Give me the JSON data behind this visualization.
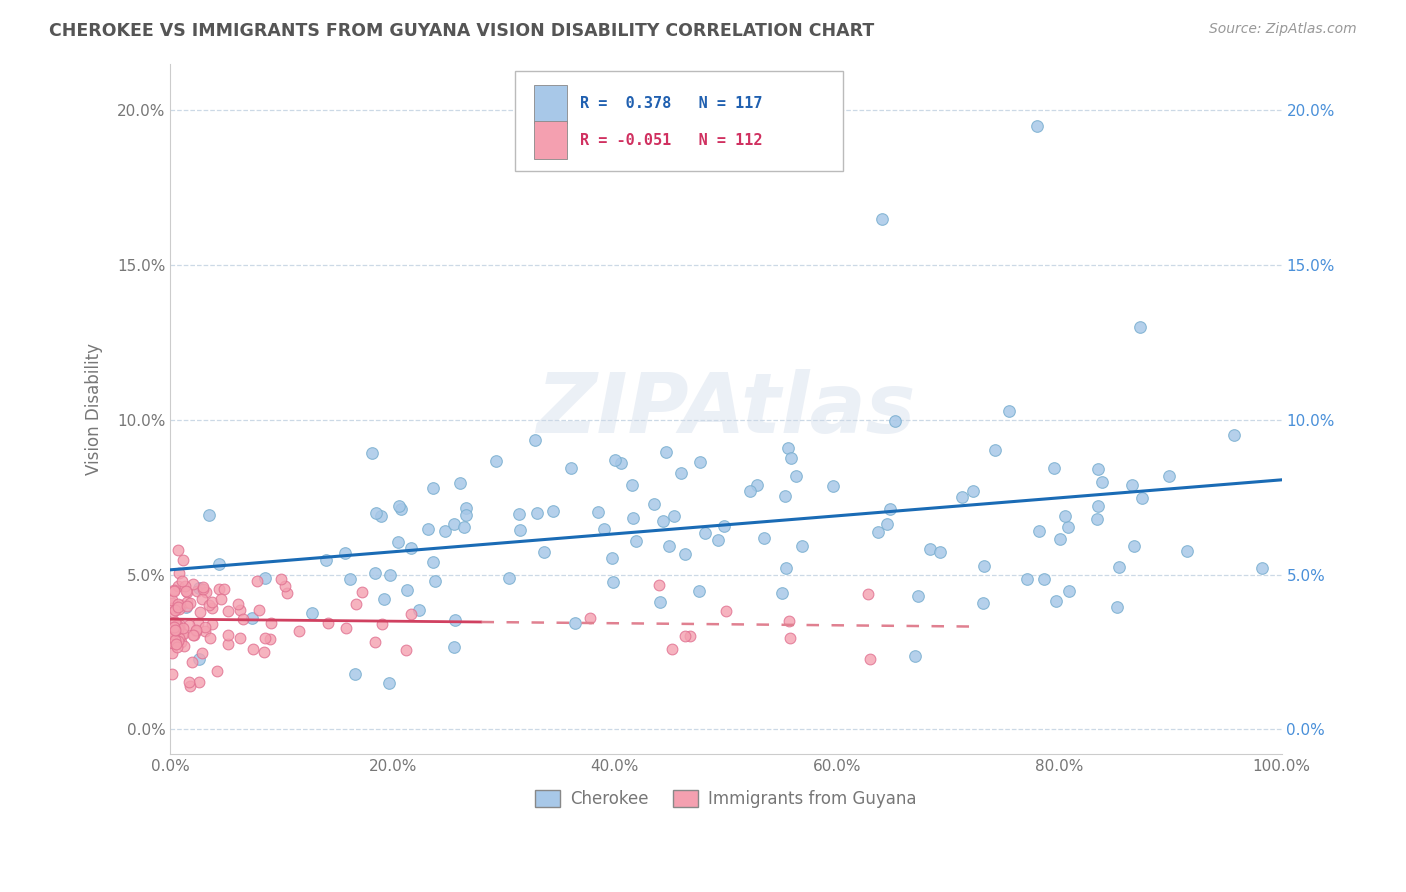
{
  "title": "CHEROKEE VS IMMIGRANTS FROM GUYANA VISION DISABILITY CORRELATION CHART",
  "source": "Source: ZipAtlas.com",
  "ylabel_label": "Vision Disability",
  "x_min": 0.0,
  "x_max": 1.0,
  "y_min": -0.008,
  "y_max": 0.215,
  "x_ticks": [
    0.0,
    0.2,
    0.4,
    0.6,
    0.8,
    1.0
  ],
  "x_tick_labels": [
    "0.0%",
    "20.0%",
    "40.0%",
    "60.0%",
    "80.0%",
    "100.0%"
  ],
  "y_ticks": [
    0.0,
    0.05,
    0.1,
    0.15,
    0.2
  ],
  "y_tick_labels": [
    "0.0%",
    "5.0%",
    "10.0%",
    "15.0%",
    "20.0%"
  ],
  "cherokee_color": "#a8c8e8",
  "cherokee_edge_color": "#7aafd0",
  "guyana_color": "#f4a0b0",
  "guyana_edge_color": "#e07090",
  "cherokee_line_color": "#1a6bb5",
  "guyana_line_solid_color": "#d04060",
  "guyana_line_dash_color": "#e08090",
  "legend_cherokee_r": "0.378",
  "legend_cherokee_n": "117",
  "legend_guyana_r": "-0.051",
  "legend_guyana_n": "112",
  "watermark": "ZIPAtlas",
  "background_color": "#ffffff",
  "grid_color": "#c0d0e0",
  "title_color": "#555555",
  "label_color": "#777777",
  "right_tick_color": "#4a90d9",
  "legend_r_color": "#2060b0",
  "legend_n_color": "#333333"
}
